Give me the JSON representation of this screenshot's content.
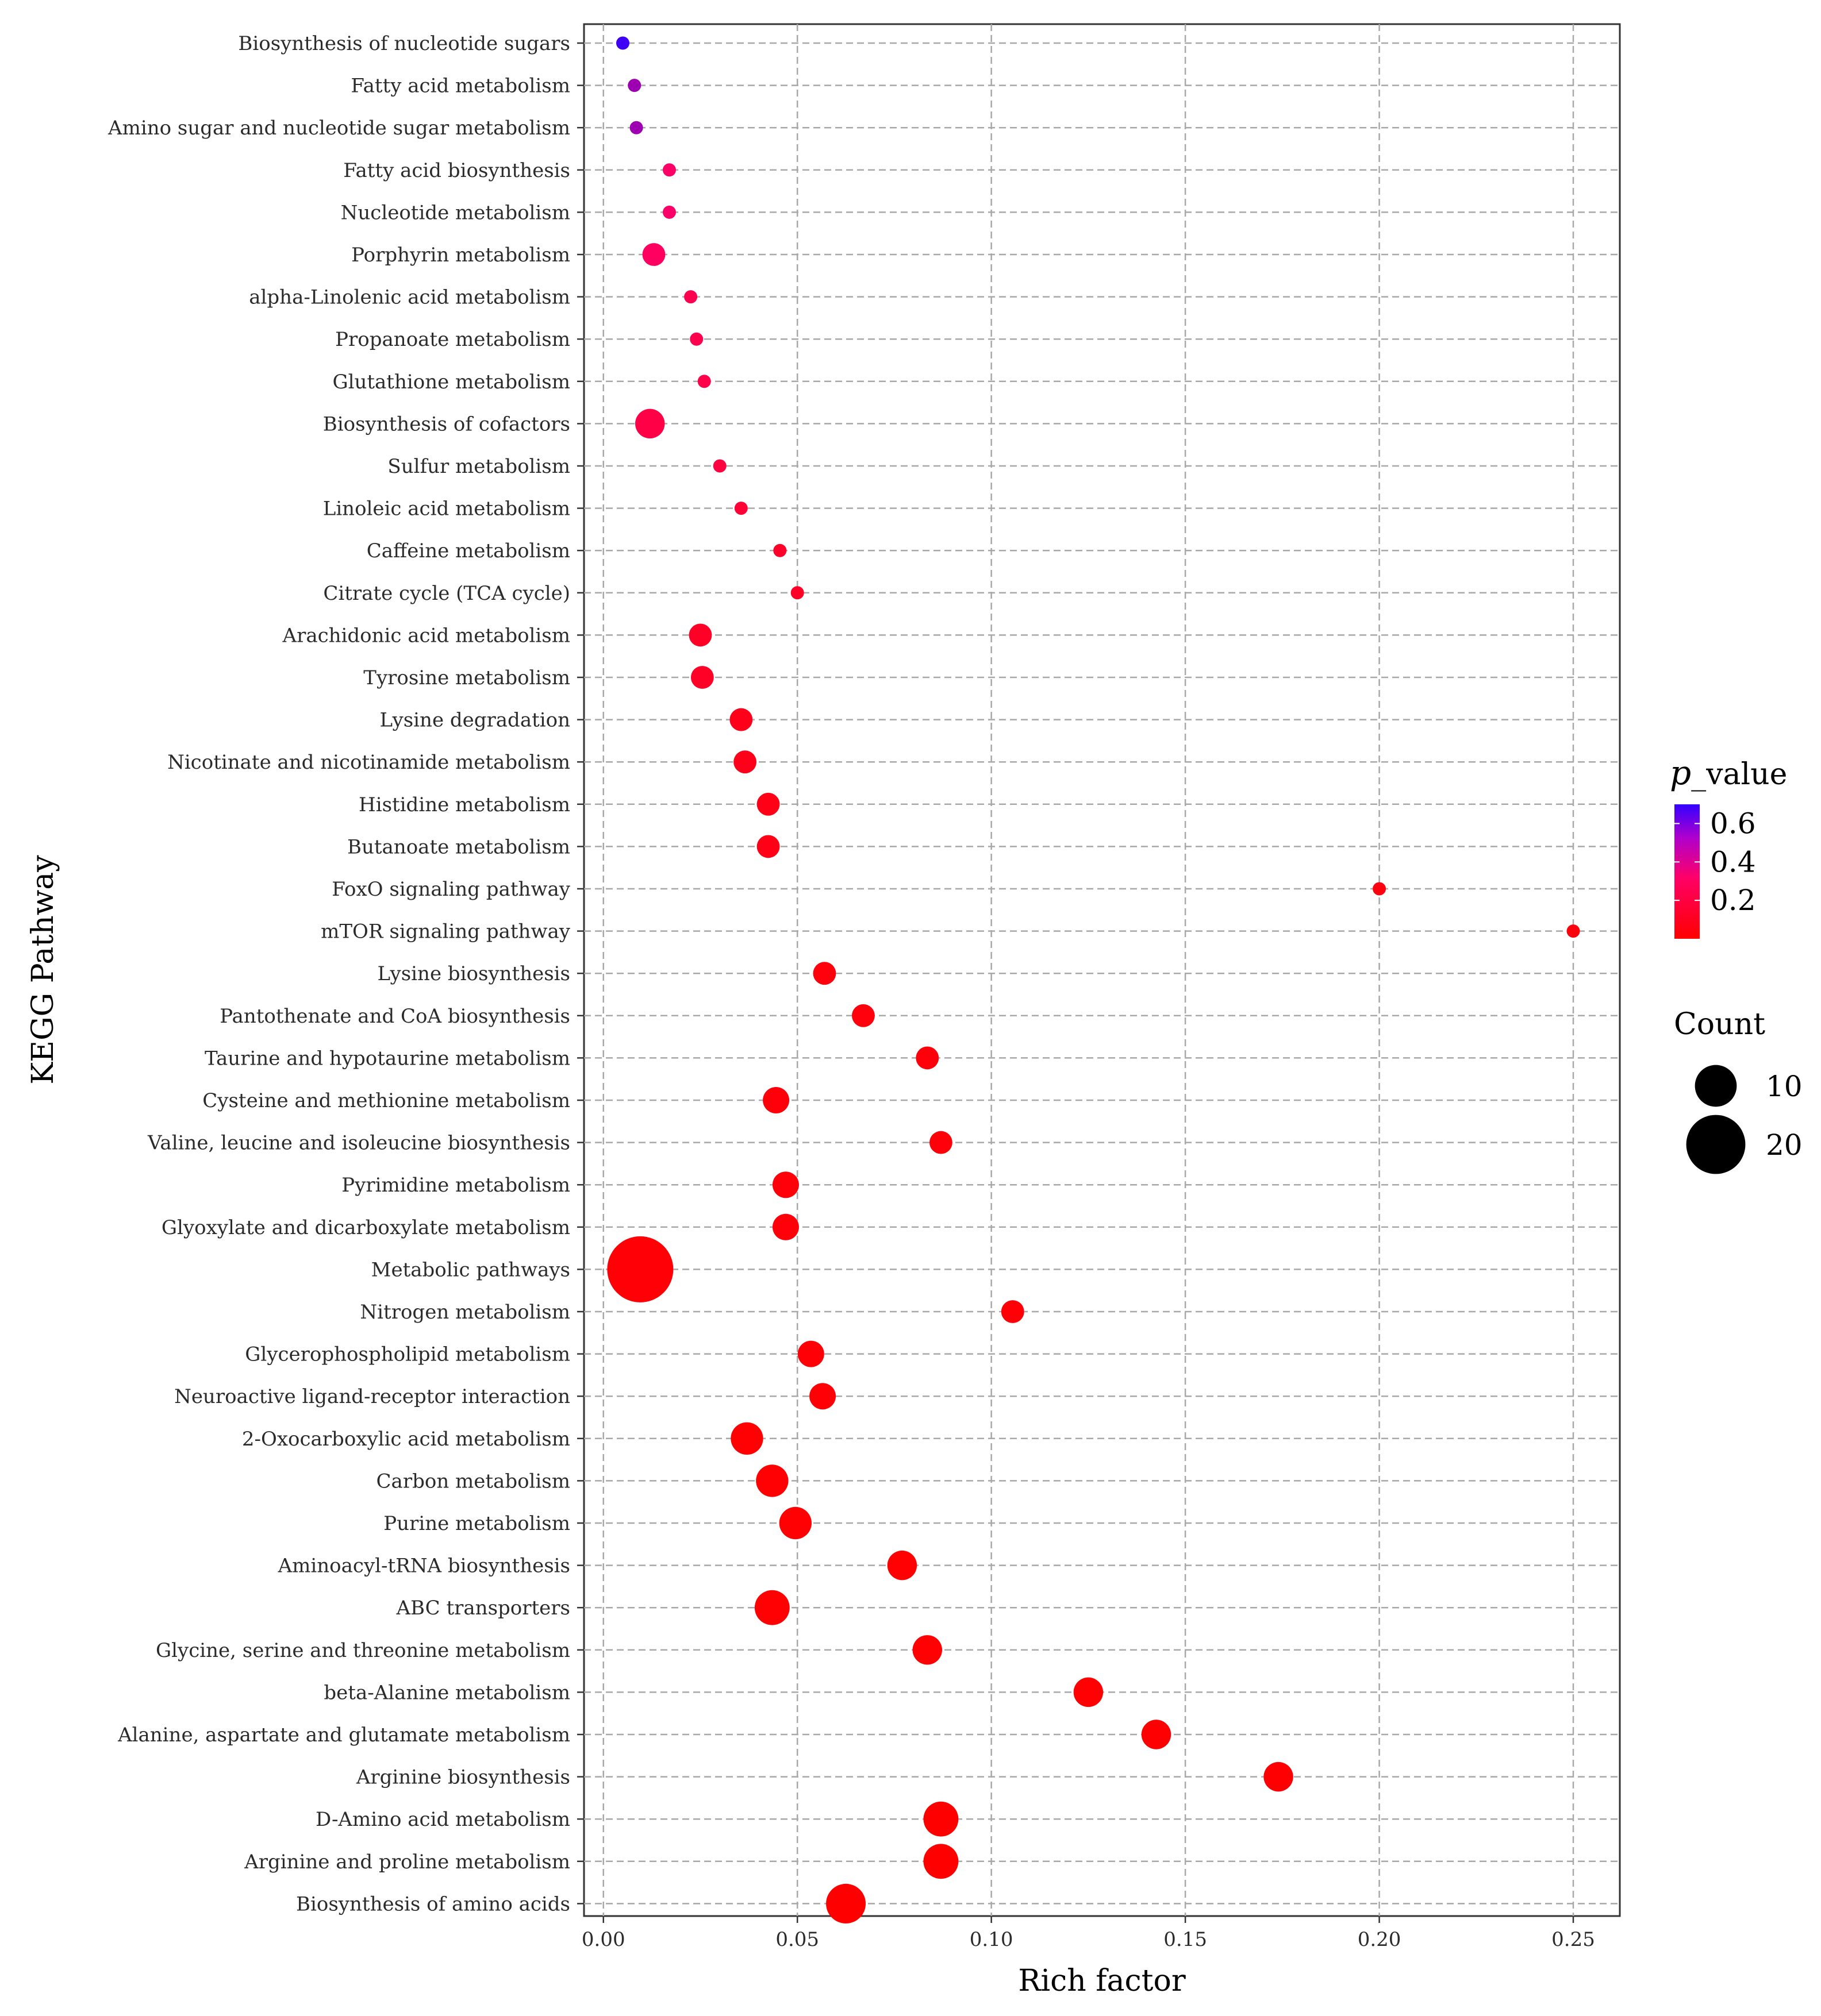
{
  "chart_data": {
    "type": "scatter",
    "title": "",
    "xlabel": "Rich factor",
    "ylabel": "KEGG Pathway",
    "xlim": [
      -0.005,
      0.262
    ],
    "x_ticks": [
      0.0,
      0.05,
      0.1,
      0.15,
      0.2,
      0.25
    ],
    "x_tick_labels": [
      "0.00",
      "0.05",
      "0.10",
      "0.15",
      "0.20",
      "0.25"
    ],
    "grid": true,
    "legend_color": {
      "title_italic": "p",
      "title_rest": "_value",
      "range": [
        0.0,
        0.7
      ],
      "ticks": [
        0.6,
        0.4,
        0.2
      ],
      "tick_labels": [
        "0.6",
        "0.4",
        "0.2"
      ],
      "low_color": "#ff0000",
      "mid_color": "#ff0066",
      "high_color": "#3300ff",
      "placement": "right"
    },
    "legend_size": {
      "title": "Count",
      "values": [
        10,
        20
      ],
      "labels": [
        "10",
        "20"
      ],
      "placement": "right"
    },
    "points": [
      {
        "pathway": "Biosynthesis of nucleotide sugars",
        "rich_factor": 0.005,
        "count": 1,
        "p_value": 0.68
      },
      {
        "pathway": "Fatty acid metabolism",
        "rich_factor": 0.008,
        "count": 1,
        "p_value": 0.5
      },
      {
        "pathway": "Amino sugar and nucleotide sugar metabolism",
        "rich_factor": 0.0085,
        "count": 1,
        "p_value": 0.5
      },
      {
        "pathway": "Fatty acid biosynthesis",
        "rich_factor": 0.017,
        "count": 1,
        "p_value": 0.32
      },
      {
        "pathway": "Nucleotide metabolism",
        "rich_factor": 0.017,
        "count": 1,
        "p_value": 0.32
      },
      {
        "pathway": "Porphyrin metabolism",
        "rich_factor": 0.013,
        "count": 3,
        "p_value": 0.3
      },
      {
        "pathway": "alpha-Linolenic acid metabolism",
        "rich_factor": 0.0225,
        "count": 1,
        "p_value": 0.25
      },
      {
        "pathway": "Propanoate metabolism",
        "rich_factor": 0.024,
        "count": 1,
        "p_value": 0.24
      },
      {
        "pathway": "Glutathione metabolism",
        "rich_factor": 0.026,
        "count": 1,
        "p_value": 0.23
      },
      {
        "pathway": "Biosynthesis of cofactors",
        "rich_factor": 0.012,
        "count": 5,
        "p_value": 0.22
      },
      {
        "pathway": "Sulfur metabolism",
        "rich_factor": 0.03,
        "count": 1,
        "p_value": 0.2
      },
      {
        "pathway": "Linoleic acid metabolism",
        "rich_factor": 0.0355,
        "count": 1,
        "p_value": 0.17
      },
      {
        "pathway": "Caffeine metabolism",
        "rich_factor": 0.0455,
        "count": 1,
        "p_value": 0.13
      },
      {
        "pathway": "Citrate cycle (TCA cycle)",
        "rich_factor": 0.05,
        "count": 1,
        "p_value": 0.12
      },
      {
        "pathway": "Arachidonic acid metabolism",
        "rich_factor": 0.025,
        "count": 3,
        "p_value": 0.12
      },
      {
        "pathway": "Tyrosine metabolism",
        "rich_factor": 0.0255,
        "count": 3,
        "p_value": 0.12
      },
      {
        "pathway": "Lysine degradation",
        "rich_factor": 0.0355,
        "count": 3,
        "p_value": 0.08
      },
      {
        "pathway": "Nicotinate and nicotinamide metabolism",
        "rich_factor": 0.0365,
        "count": 3,
        "p_value": 0.08
      },
      {
        "pathway": "Histidine metabolism",
        "rich_factor": 0.0425,
        "count": 3,
        "p_value": 0.07
      },
      {
        "pathway": "Butanoate metabolism",
        "rich_factor": 0.0425,
        "count": 3,
        "p_value": 0.07
      },
      {
        "pathway": "FoxO signaling pathway",
        "rich_factor": 0.2,
        "count": 1,
        "p_value": 0.05
      },
      {
        "pathway": "mTOR signaling pathway",
        "rich_factor": 0.25,
        "count": 1,
        "p_value": 0.04
      },
      {
        "pathway": "Lysine biosynthesis",
        "rich_factor": 0.057,
        "count": 3,
        "p_value": 0.04
      },
      {
        "pathway": "Pantothenate and CoA biosynthesis",
        "rich_factor": 0.067,
        "count": 3,
        "p_value": 0.04
      },
      {
        "pathway": "Taurine and hypotaurine metabolism",
        "rich_factor": 0.0835,
        "count": 3,
        "p_value": 0.03
      },
      {
        "pathway": "Cysteine and methionine metabolism",
        "rich_factor": 0.0445,
        "count": 4,
        "p_value": 0.03
      },
      {
        "pathway": "Valine, leucine and isoleucine biosynthesis",
        "rich_factor": 0.087,
        "count": 3,
        "p_value": 0.03
      },
      {
        "pathway": "Pyrimidine metabolism",
        "rich_factor": 0.047,
        "count": 4,
        "p_value": 0.03
      },
      {
        "pathway": "Glyoxylate and dicarboxylate metabolism",
        "rich_factor": 0.047,
        "count": 4,
        "p_value": 0.03
      },
      {
        "pathway": "Metabolic pathways",
        "rich_factor": 0.0095,
        "count": 25,
        "p_value": 0.02
      },
      {
        "pathway": "Nitrogen metabolism",
        "rich_factor": 0.1055,
        "count": 3,
        "p_value": 0.02
      },
      {
        "pathway": "Glycerophospholipid metabolism",
        "rich_factor": 0.0535,
        "count": 4,
        "p_value": 0.02
      },
      {
        "pathway": "Neuroactive ligand-receptor interaction",
        "rich_factor": 0.0565,
        "count": 4,
        "p_value": 0.02
      },
      {
        "pathway": "2-Oxocarboxylic acid metabolism",
        "rich_factor": 0.037,
        "count": 6,
        "p_value": 0.01
      },
      {
        "pathway": "Carbon metabolism",
        "rich_factor": 0.0435,
        "count": 6,
        "p_value": 0.01
      },
      {
        "pathway": "Purine metabolism",
        "rich_factor": 0.0495,
        "count": 6,
        "p_value": 0.01
      },
      {
        "pathway": "Aminoacyl-tRNA biosynthesis",
        "rich_factor": 0.077,
        "count": 5,
        "p_value": 0.01
      },
      {
        "pathway": "ABC transporters",
        "rich_factor": 0.0435,
        "count": 7,
        "p_value": 0.01
      },
      {
        "pathway": "Glycine, serine and threonine metabolism",
        "rich_factor": 0.0835,
        "count": 5,
        "p_value": 0.01
      },
      {
        "pathway": "beta-Alanine metabolism",
        "rich_factor": 0.125,
        "count": 5,
        "p_value": 0.01
      },
      {
        "pathway": "Alanine, aspartate and glutamate metabolism",
        "rich_factor": 0.1425,
        "count": 5,
        "p_value": 0.005
      },
      {
        "pathway": "Arginine biosynthesis",
        "rich_factor": 0.174,
        "count": 5,
        "p_value": 0.005
      },
      {
        "pathway": "D-Amino acid metabolism",
        "rich_factor": 0.087,
        "count": 7,
        "p_value": 0.003
      },
      {
        "pathway": "Arginine and proline metabolism",
        "rich_factor": 0.087,
        "count": 7,
        "p_value": 0.003
      },
      {
        "pathway": "Biosynthesis of amino acids",
        "rich_factor": 0.0625,
        "count": 9,
        "p_value": 0.001
      }
    ]
  }
}
